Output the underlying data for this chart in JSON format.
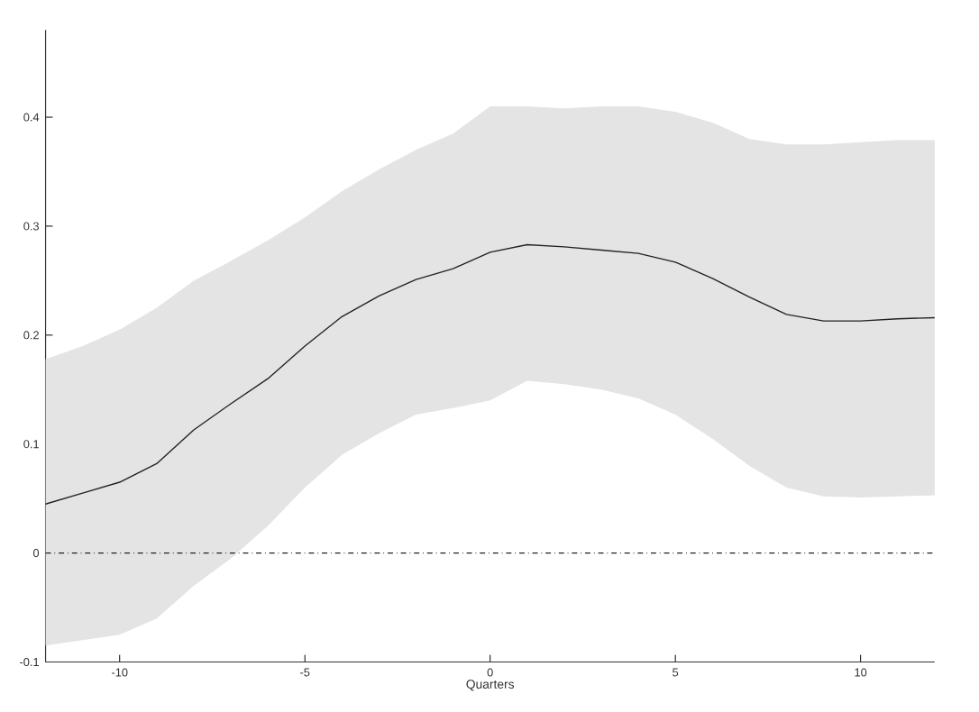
{
  "chart_data": {
    "type": "line",
    "xlabel": "Quarters",
    "x": [
      -12,
      -11,
      -10,
      -9,
      -8,
      -7,
      -6,
      -5,
      -4,
      -3,
      -2,
      -1,
      0,
      1,
      2,
      3,
      4,
      5,
      6,
      7,
      8,
      9,
      10,
      11,
      12
    ],
    "series": [
      {
        "color": "#222222",
        "values": [
          0.045,
          0.055,
          0.065,
          0.082,
          0.113,
          0.137,
          0.16,
          0.19,
          0.217,
          0.236,
          0.251,
          0.261,
          0.276,
          0.283,
          0.281,
          0.278,
          0.275,
          0.267,
          0.252,
          0.235,
          0.219,
          0.213,
          0.213,
          0.215,
          0.216
        ],
        "upper": [
          0.178,
          0.19,
          0.205,
          0.225,
          0.25,
          0.268,
          0.287,
          0.308,
          0.332,
          0.352,
          0.37,
          0.385,
          0.41,
          0.41,
          0.408,
          0.41,
          0.41,
          0.405,
          0.395,
          0.38,
          0.375,
          0.375,
          0.377,
          0.379,
          0.379
        ],
        "lower": [
          -0.085,
          -0.08,
          -0.075,
          -0.06,
          -0.03,
          -0.005,
          0.025,
          0.06,
          0.09,
          0.11,
          0.127,
          0.133,
          0.14,
          0.158,
          0.155,
          0.15,
          0.142,
          0.127,
          0.105,
          0.08,
          0.06,
          0.052,
          0.051,
          0.052,
          0.053
        ]
      }
    ],
    "xlim": [
      -12,
      12
    ],
    "xticks": [
      -10,
      -5,
      0,
      5,
      10
    ],
    "ylim": [
      -0.1,
      0.48
    ],
    "yticks": [
      -0.1,
      0,
      0.1,
      0.2,
      0.3,
      0.4
    ],
    "ref_lines": [
      {
        "axis": "y",
        "value": 0,
        "line_style": "dashdot",
        "color": "#222222"
      }
    ],
    "grid": false,
    "marker": "none",
    "line_style": "solid"
  }
}
